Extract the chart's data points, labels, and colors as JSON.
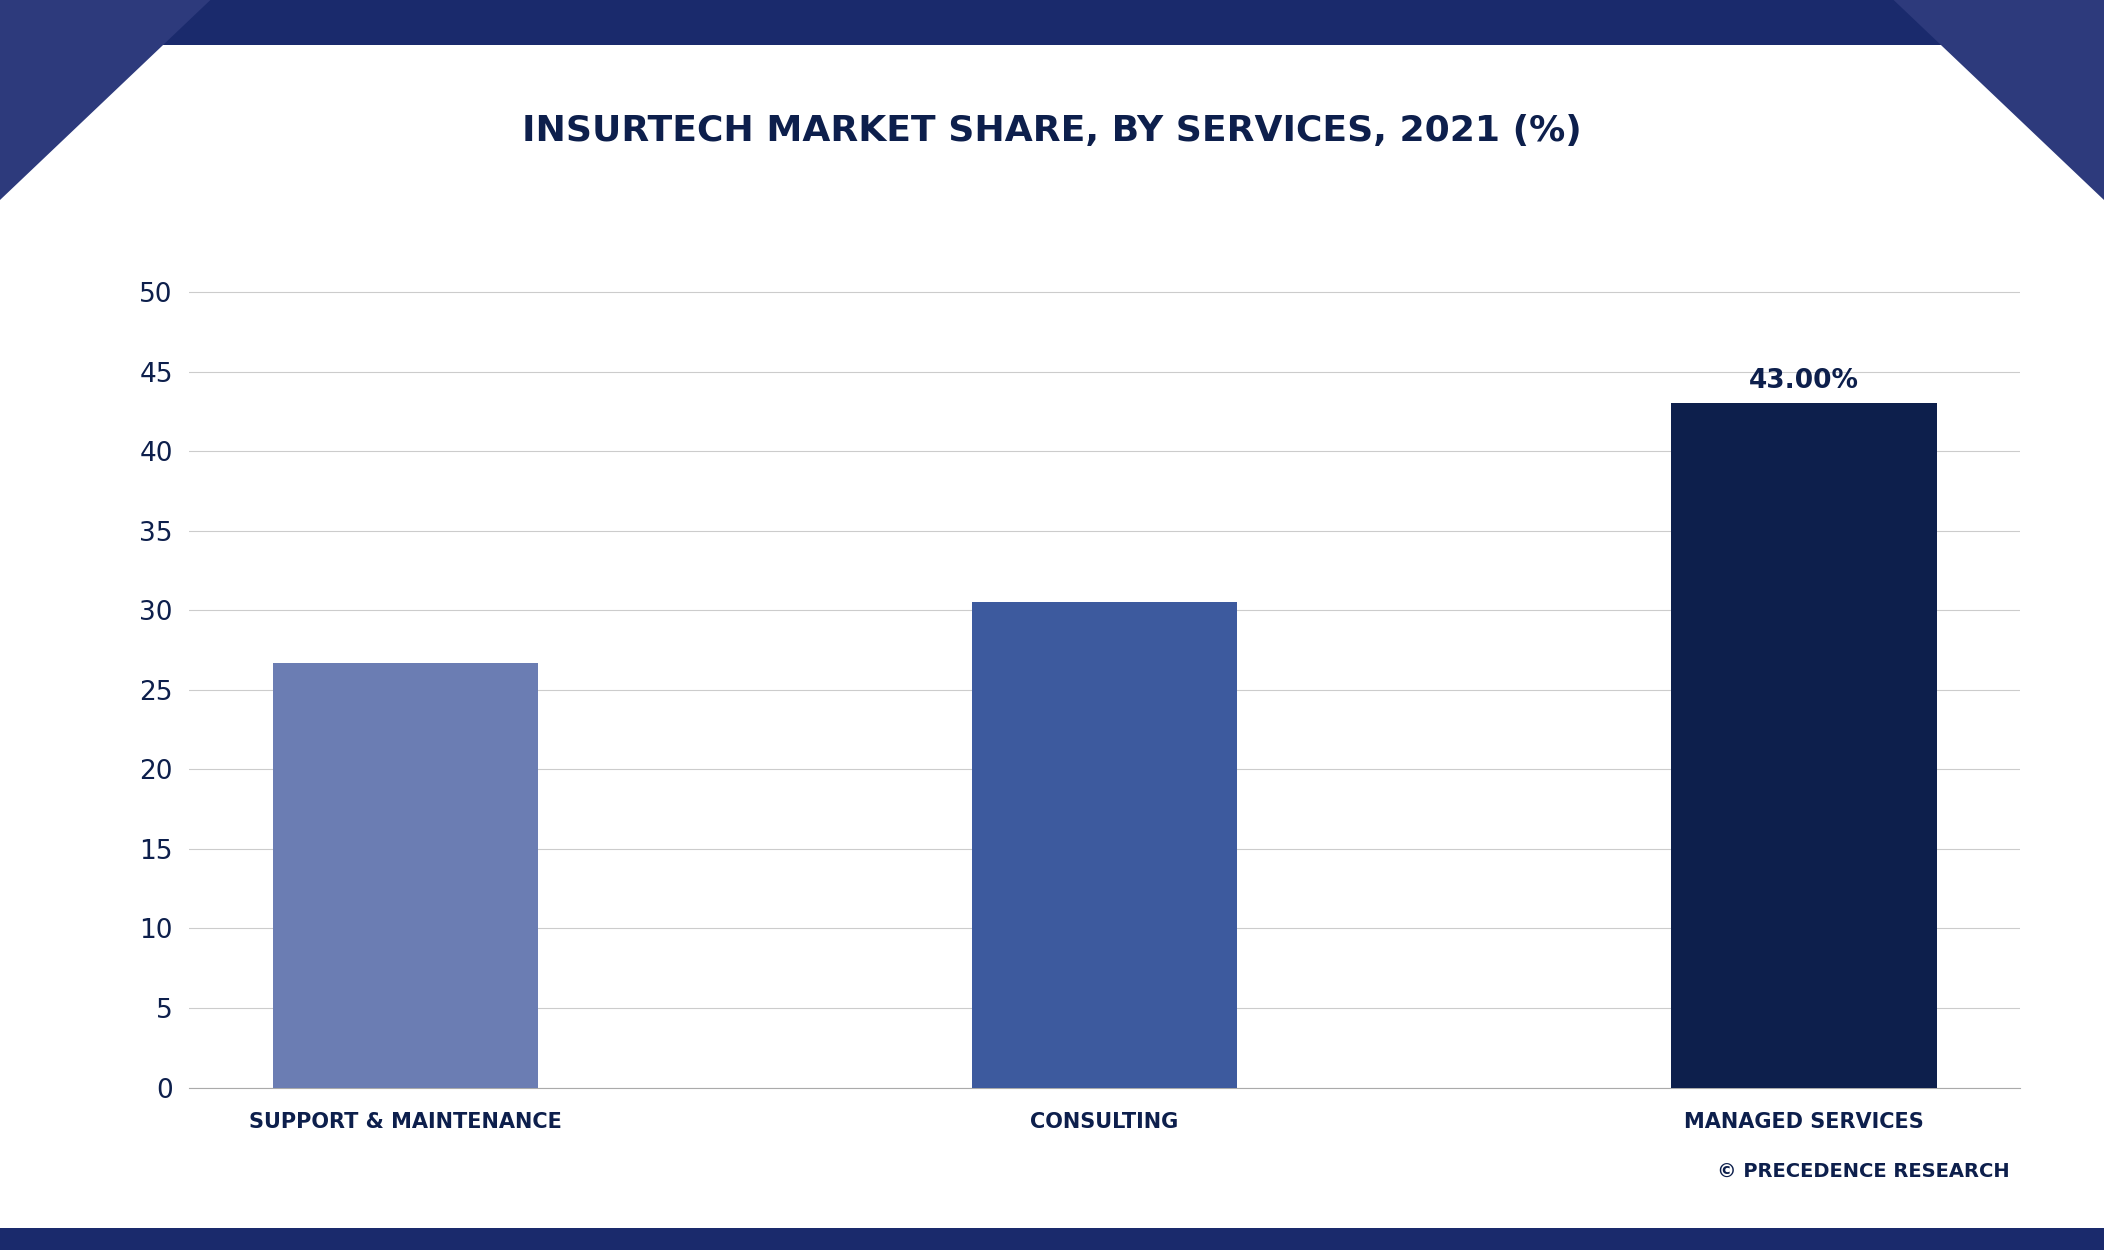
{
  "title": "INSURTECH MARKET SHARE, BY SERVICES, 2021 (%)",
  "categories": [
    "SUPPORT & MAINTENANCE",
    "CONSULTING",
    "MANAGED SERVICES"
  ],
  "values": [
    26.7,
    30.5,
    43.0
  ],
  "bar_colors": [
    "#6b7db3",
    "#3d5a9e",
    "#0d1f4c"
  ],
  "bar_label": [
    null,
    null,
    "43.00%"
  ],
  "ylim": [
    0,
    55
  ],
  "yticks": [
    0,
    5,
    10,
    15,
    20,
    25,
    30,
    35,
    40,
    45,
    50
  ],
  "background_color": "#ffffff",
  "plot_area_bg": "#ffffff",
  "title_color": "#0d1f4c",
  "axis_label_color": "#0d1f4c",
  "tick_color": "#0d1f4c",
  "grid_color": "#cccccc",
  "watermark": "© PRECEDENCE RESEARCH",
  "watermark_color": "#0d1f4c",
  "title_fontsize": 26,
  "tick_fontsize": 19,
  "xlabel_fontsize": 15,
  "annotation_fontsize": 19,
  "corner_color": "#2d3a7c",
  "border_color": "#1a2a6c",
  "bar_width": 0.38
}
